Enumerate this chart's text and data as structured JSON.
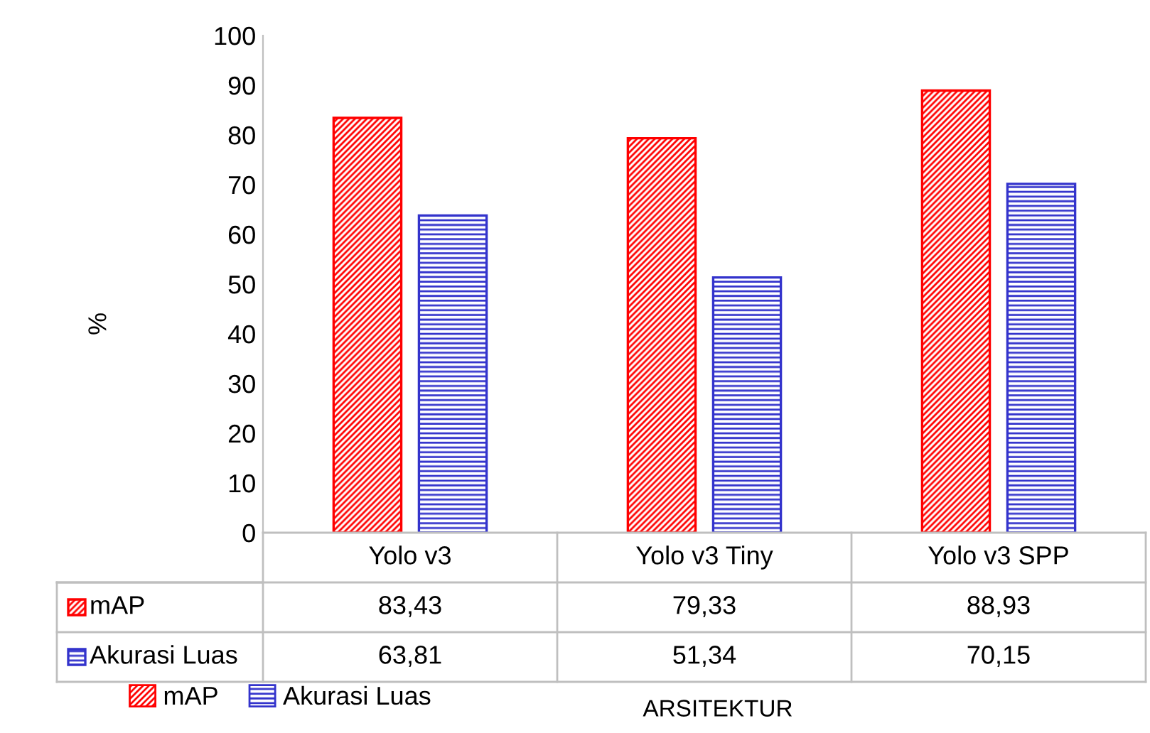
{
  "chart_data": {
    "type": "bar",
    "categories": [
      "Yolo v3",
      "Yolo v3 Tiny",
      "Yolo v3 SPP"
    ],
    "series": [
      {
        "name": "mAP",
        "color": "#ff0000",
        "values": [
          83.43,
          79.33,
          88.93
        ],
        "value_labels": [
          "83,43",
          "79,33",
          "88,93"
        ]
      },
      {
        "name": "Akurasi Luas",
        "color": "#3333cc",
        "values": [
          63.81,
          51.34,
          70.15
        ],
        "value_labels": [
          "63,81",
          "51,34",
          "70,15"
        ]
      }
    ],
    "annotations": [
      "%",
      "ARSITEKTUR"
    ],
    "ylim": [
      0,
      100
    ],
    "yticks": [
      0,
      10,
      20,
      30,
      40,
      50,
      60,
      70,
      80,
      90,
      100
    ],
    "grid": false,
    "legend": "bottom"
  }
}
